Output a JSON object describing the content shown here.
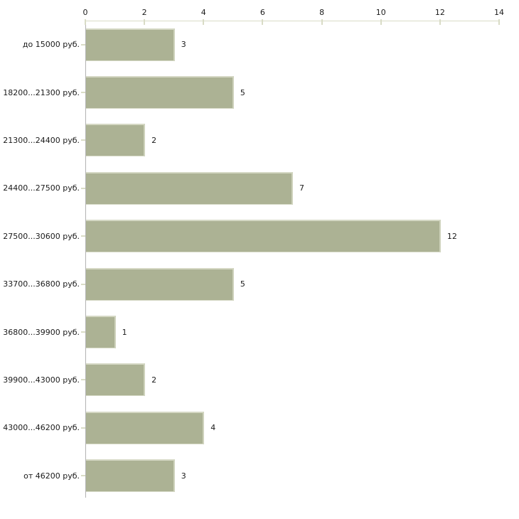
{
  "chart_data": {
    "type": "bar",
    "orientation": "horizontal",
    "title": "",
    "xlabel": "",
    "ylabel": "",
    "categories": [
      "до 15000 руб.",
      "18200...21300 руб.",
      "21300...24400 руб.",
      "24400...27500 руб.",
      "27500...30600 руб.",
      "33700...36800 руб.",
      "36800...39900 руб.",
      "39900...43000 руб.",
      "43000...46200 руб.",
      "от 46200 руб."
    ],
    "values": [
      3,
      5,
      2,
      7,
      12,
      5,
      1,
      2,
      4,
      3
    ],
    "x_ticks": [
      0,
      2,
      4,
      6,
      8,
      10,
      12,
      14
    ],
    "xlim": [
      0,
      14
    ],
    "value_axis_position": "top",
    "grid": false,
    "legend": false,
    "colors": {
      "background": "#ffffff",
      "bar_fill": "#acb294",
      "bar_edge_highlight": "#d5d8c4",
      "value_axis_line": "#d9dcc6",
      "tick_mark": "#d9dcc6",
      "category_axis_line": "#b3b3b3",
      "text": "#1a1a1a"
    }
  }
}
